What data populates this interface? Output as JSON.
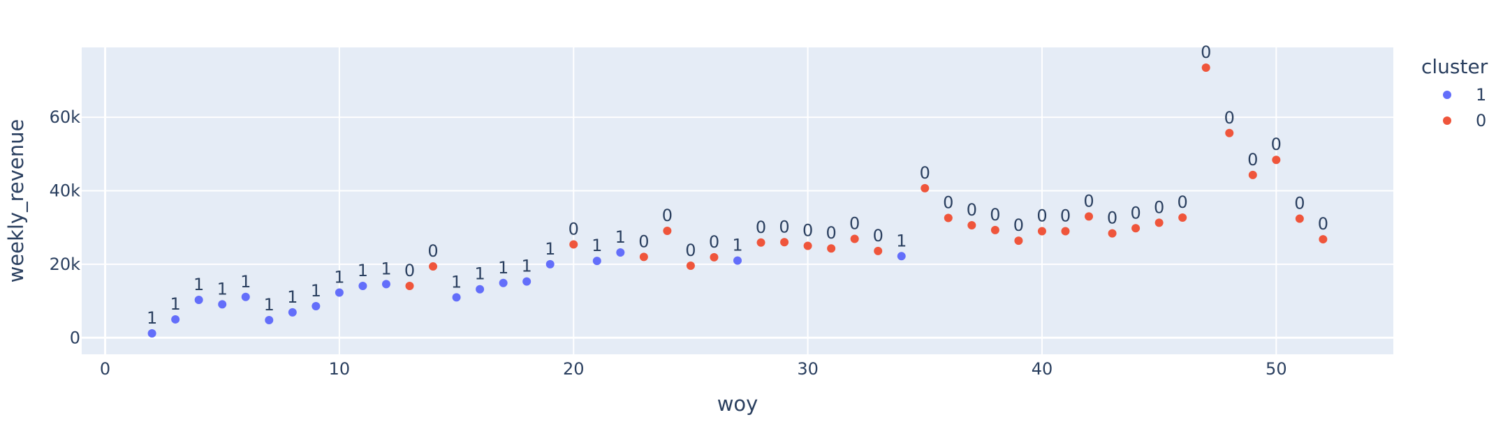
{
  "chart_data": {
    "type": "scatter",
    "xlabel": "woy",
    "ylabel": "weekly_revenue",
    "xlim": [
      -1,
      55
    ],
    "ylim": [
      -4500,
      79000
    ],
    "x_ticks": [
      0,
      10,
      20,
      30,
      40,
      50
    ],
    "y_ticks": [
      0,
      20000,
      40000,
      60000
    ],
    "y_tick_labels": [
      "0",
      "20k",
      "40k",
      "60k"
    ],
    "grid": true,
    "legend": {
      "title": "cluster",
      "placement": "right",
      "entries": [
        {
          "name": "1",
          "color": "#636efa"
        },
        {
          "name": "0",
          "color": "#ef553b"
        }
      ]
    },
    "series": [
      {
        "name": "1",
        "color": "#636efa",
        "points": [
          {
            "x": 2,
            "y": 1200
          },
          {
            "x": 3,
            "y": 5000
          },
          {
            "x": 4,
            "y": 10300
          },
          {
            "x": 5,
            "y": 9100
          },
          {
            "x": 6,
            "y": 11100
          },
          {
            "x": 7,
            "y": 4800
          },
          {
            "x": 8,
            "y": 6900
          },
          {
            "x": 9,
            "y": 8600
          },
          {
            "x": 10,
            "y": 12300
          },
          {
            "x": 11,
            "y": 14100
          },
          {
            "x": 12,
            "y": 14600
          },
          {
            "x": 15,
            "y": 11000
          },
          {
            "x": 16,
            "y": 13200
          },
          {
            "x": 17,
            "y": 14900
          },
          {
            "x": 18,
            "y": 15300
          },
          {
            "x": 19,
            "y": 20000
          },
          {
            "x": 21,
            "y": 20900
          },
          {
            "x": 22,
            "y": 23200
          },
          {
            "x": 27,
            "y": 21000
          },
          {
            "x": 34,
            "y": 22200
          }
        ]
      },
      {
        "name": "0",
        "color": "#ef553b",
        "points": [
          {
            "x": 13,
            "y": 14100
          },
          {
            "x": 14,
            "y": 19400
          },
          {
            "x": 20,
            "y": 25400
          },
          {
            "x": 23,
            "y": 22000
          },
          {
            "x": 24,
            "y": 29100
          },
          {
            "x": 25,
            "y": 19600
          },
          {
            "x": 26,
            "y": 21900
          },
          {
            "x": 28,
            "y": 25900
          },
          {
            "x": 29,
            "y": 26000
          },
          {
            "x": 30,
            "y": 25000
          },
          {
            "x": 31,
            "y": 24300
          },
          {
            "x": 32,
            "y": 26900
          },
          {
            "x": 33,
            "y": 23600
          },
          {
            "x": 35,
            "y": 40700
          },
          {
            "x": 36,
            "y": 32600
          },
          {
            "x": 37,
            "y": 30600
          },
          {
            "x": 38,
            "y": 29300
          },
          {
            "x": 39,
            "y": 26400
          },
          {
            "x": 40,
            "y": 29000
          },
          {
            "x": 41,
            "y": 29000
          },
          {
            "x": 42,
            "y": 33000
          },
          {
            "x": 43,
            "y": 28400
          },
          {
            "x": 44,
            "y": 29800
          },
          {
            "x": 45,
            "y": 31300
          },
          {
            "x": 46,
            "y": 32700
          },
          {
            "x": 47,
            "y": 73500
          },
          {
            "x": 48,
            "y": 55700
          },
          {
            "x": 49,
            "y": 44300
          },
          {
            "x": 50,
            "y": 48400
          },
          {
            "x": 51,
            "y": 32400
          },
          {
            "x": 52,
            "y": 26800
          }
        ]
      }
    ]
  }
}
